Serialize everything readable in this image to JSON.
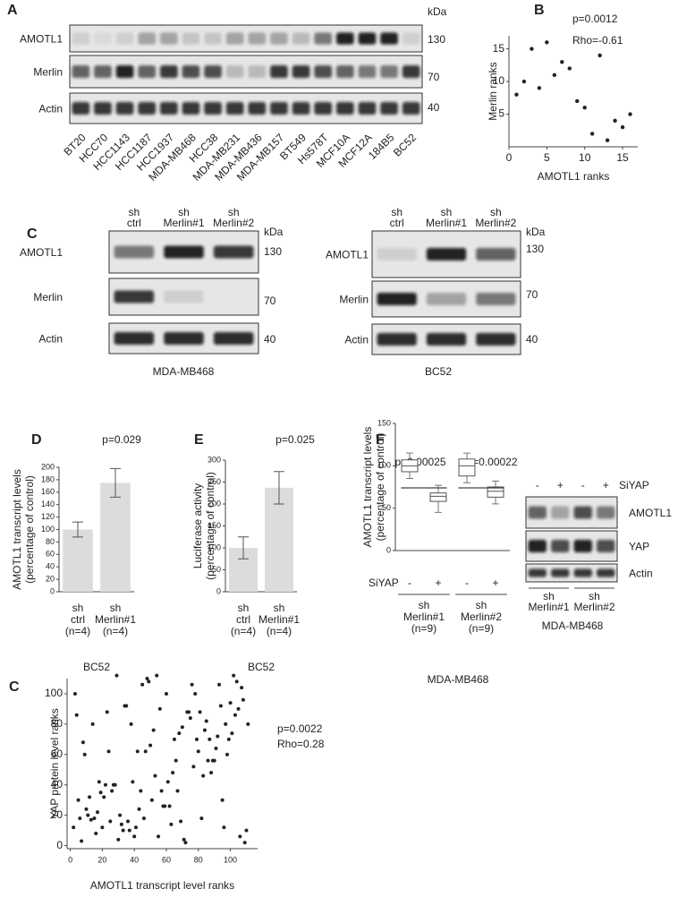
{
  "panel_labels": [
    "A",
    "B",
    "C",
    "D",
    "E",
    "F",
    "C"
  ],
  "blots": [
    {
      "lanes": [
        "BT20",
        "HCC70",
        "HCC1143",
        "HCC1187",
        "HCC1937",
        "MDA-MB468",
        "HCC38",
        "MDA-MB231",
        "MDA-MB436",
        "MDA-MB157",
        "BT549",
        "Hs578T",
        "MCF10A",
        "MCF12A",
        "184B5",
        "BC52"
      ],
      "rows": [
        "AMOTL1",
        "Merlin",
        "Actin"
      ],
      "kda_title": "kDa",
      "kda": [
        130,
        70,
        40
      ]
    },
    {
      "lanes": [
        [
          "sh",
          "ctrl"
        ],
        [
          "sh",
          "Merlin#1"
        ],
        [
          "sh",
          "Merlin#2"
        ]
      ],
      "rows": [
        "AMOTL1",
        "Merlin",
        "Actin"
      ],
      "kda_title": "kDa",
      "kda": [
        130,
        70,
        40
      ],
      "caption": "MDA-MB468"
    },
    {
      "lanes": [
        [
          "sh",
          "ctrl"
        ],
        [
          "sh",
          "Merlin#1"
        ],
        [
          "sh",
          "Merlin#2"
        ]
      ],
      "rows": [
        "AMOTL1",
        "Merlin",
        "Actin"
      ],
      "kda_title": "kDa",
      "kda": [
        130,
        70,
        40
      ],
      "caption": "BC52"
    },
    {
      "treatment_label": "SiYAP",
      "lanes": [
        "-",
        "+",
        "-",
        "+"
      ],
      "groups": [
        [
          "sh",
          "Merlin#1"
        ],
        [
          "sh",
          "Merlin#2"
        ]
      ],
      "rows": [
        "AMOTL1",
        "YAP",
        "Actin"
      ],
      "caption": "MDA-MB468"
    }
  ],
  "chart_data": [
    {
      "type": "scatter",
      "annotations": [
        "p=0.0012",
        "Rho=-0.61"
      ],
      "xlabel": "AMOTL1 ranks",
      "ylabel": "Merlin ranks",
      "x": [
        1,
        2,
        3,
        4,
        5,
        6,
        7,
        8,
        9,
        10,
        11,
        12,
        13,
        14,
        15,
        16
      ],
      "y": [
        8,
        10,
        15,
        9,
        16,
        11,
        13,
        12,
        7,
        6,
        2,
        14,
        1,
        4,
        3,
        5
      ],
      "xlim": [
        0,
        17
      ],
      "ylim": [
        0,
        17
      ],
      "xticks": [
        0,
        5,
        10,
        15
      ],
      "yticks": [
        5,
        10,
        15
      ],
      "color": "#222"
    },
    {
      "type": "bar",
      "annotations": [
        "p=0.029"
      ],
      "ylabel": [
        "AMOTL1 transcript levels",
        "(percentage of control)"
      ],
      "categories": [
        [
          "sh",
          "ctrl",
          "(n=4)"
        ],
        [
          "sh",
          "Merlin#1",
          "(n=4)"
        ]
      ],
      "values": [
        100,
        175
      ],
      "errors": [
        12,
        23
      ],
      "caption": "BC52",
      "ylim": [
        0,
        200
      ],
      "yticks": [
        0,
        20,
        40,
        60,
        80,
        100,
        120,
        140,
        160,
        180,
        200
      ],
      "color": "#dcdcdc"
    },
    {
      "type": "bar",
      "annotations": [
        "p=0.025"
      ],
      "ylabel": [
        "Luciferase activity",
        "(percentage of control)"
      ],
      "categories": [
        [
          "sh",
          "ctrl",
          "(n=4)"
        ],
        [
          "sh",
          "Merlin#1",
          "(n=4)"
        ]
      ],
      "values": [
        100,
        237
      ],
      "errors": [
        25,
        37
      ],
      "caption": "BC52",
      "ylim": [
        0,
        300
      ],
      "yticks": [
        0,
        50,
        100,
        150,
        200,
        250,
        300
      ],
      "color": "#dcdcdc"
    },
    {
      "type": "box",
      "annotations": [
        "p=0.00025",
        "p=0.00022"
      ],
      "ylabel": [
        "AMOTL1 transcript levels",
        "(percentage of control)"
      ],
      "treatment_label": "SiYAP",
      "categories": [
        "-",
        "+",
        "-",
        "+"
      ],
      "groups": [
        [
          "sh",
          "Merlin#1",
          "(n=9)"
        ],
        [
          "sh",
          "Merlin#2",
          "(n=9)"
        ]
      ],
      "caption": "MDA-MB468",
      "boxes": [
        {
          "min": 85,
          "q1": 93,
          "median": 100,
          "q3": 107,
          "max": 115
        },
        {
          "min": 45,
          "q1": 58,
          "median": 64,
          "q3": 68,
          "max": 77
        },
        {
          "min": 80,
          "q1": 88,
          "median": 100,
          "q3": 108,
          "max": 115
        },
        {
          "min": 55,
          "q1": 63,
          "median": 70,
          "q3": 75,
          "max": 82
        }
      ],
      "ylim": [
        0,
        150
      ],
      "yticks": [
        0,
        50,
        100,
        150
      ],
      "color": "#ffffff"
    },
    {
      "type": "scatter",
      "annotations": [
        "p=0.0022",
        "Rho=0.28"
      ],
      "xlabel": "AMOTL1 transcript level ranks",
      "ylabel": "YAP protein level ranks",
      "x": [
        2,
        3,
        4,
        5,
        6,
        7,
        8,
        9,
        10,
        11,
        12,
        13,
        14,
        15,
        16,
        17,
        18,
        19,
        20,
        21,
        22,
        23,
        24,
        25,
        26,
        27,
        28,
        29,
        30,
        31,
        32,
        33,
        34,
        35,
        36,
        37,
        38,
        39,
        40,
        41,
        42,
        43,
        44,
        45,
        46,
        47,
        48,
        49,
        50,
        51,
        52,
        53,
        54,
        55,
        56,
        57,
        58,
        59,
        60,
        61,
        62,
        63,
        64,
        65,
        66,
        67,
        68,
        69,
        70,
        71,
        72,
        73,
        74,
        75,
        76,
        77,
        78,
        79,
        80,
        81,
        82,
        83,
        84,
        85,
        86,
        87,
        88,
        89,
        90,
        91,
        92,
        93,
        94,
        95,
        96,
        97,
        98,
        99,
        100,
        101,
        102,
        103,
        104,
        105,
        106,
        107,
        108,
        109,
        110,
        111
      ],
      "y": [
        12,
        100,
        86,
        30,
        18,
        3,
        68,
        60,
        24,
        20,
        32,
        17,
        80,
        18,
        8,
        22,
        42,
        35,
        12,
        32,
        40,
        88,
        62,
        16,
        36,
        40,
        40,
        112,
        4,
        20,
        14,
        10,
        92,
        92,
        16,
        10,
        80,
        42,
        6,
        12,
        62,
        24,
        36,
        106,
        18,
        62,
        110,
        108,
        66,
        30,
        76,
        46,
        112,
        6,
        90,
        36,
        26,
        26,
        100,
        42,
        26,
        14,
        48,
        70,
        56,
        36,
        74,
        16,
        78,
        4,
        2,
        88,
        88,
        84,
        106,
        52,
        100,
        70,
        62,
        88,
        18,
        46,
        76,
        82,
        56,
        70,
        48,
        56,
        56,
        64,
        72,
        106,
        92,
        30,
        12,
        80,
        60,
        70,
        94,
        74,
        112,
        86,
        108,
        90,
        6,
        104,
        96,
        2,
        10,
        80
      ],
      "xlim": [
        -2,
        117
      ],
      "ylim": [
        -2,
        110
      ],
      "xticks": [
        0,
        20,
        40,
        60,
        80,
        100
      ],
      "yticks": [
        0,
        20,
        40,
        60,
        80,
        100
      ],
      "color": "#222"
    }
  ]
}
